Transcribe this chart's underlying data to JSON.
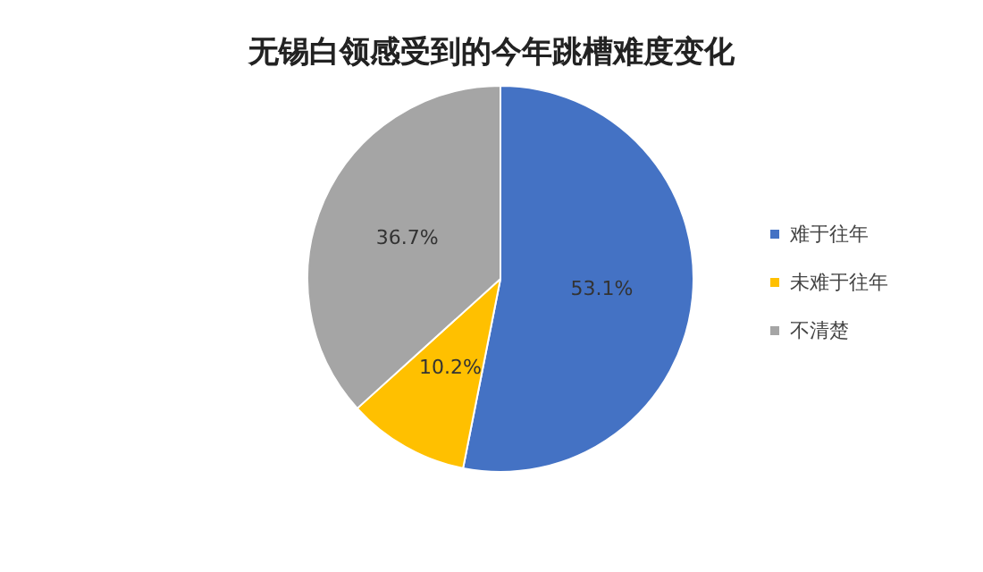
{
  "chart_data": {
    "type": "pie",
    "title": "无锡白领感受到的今年跳槽难度变化",
    "categories": [
      "难于往年",
      "未难于往年",
      "不清楚"
    ],
    "values": [
      53.1,
      10.2,
      36.7
    ],
    "colors": [
      "#4472c4",
      "#ffc000",
      "#a5a5a5"
    ],
    "value_labels": [
      "53.1%",
      "10.2%",
      "36.7%"
    ],
    "legend": "right"
  }
}
